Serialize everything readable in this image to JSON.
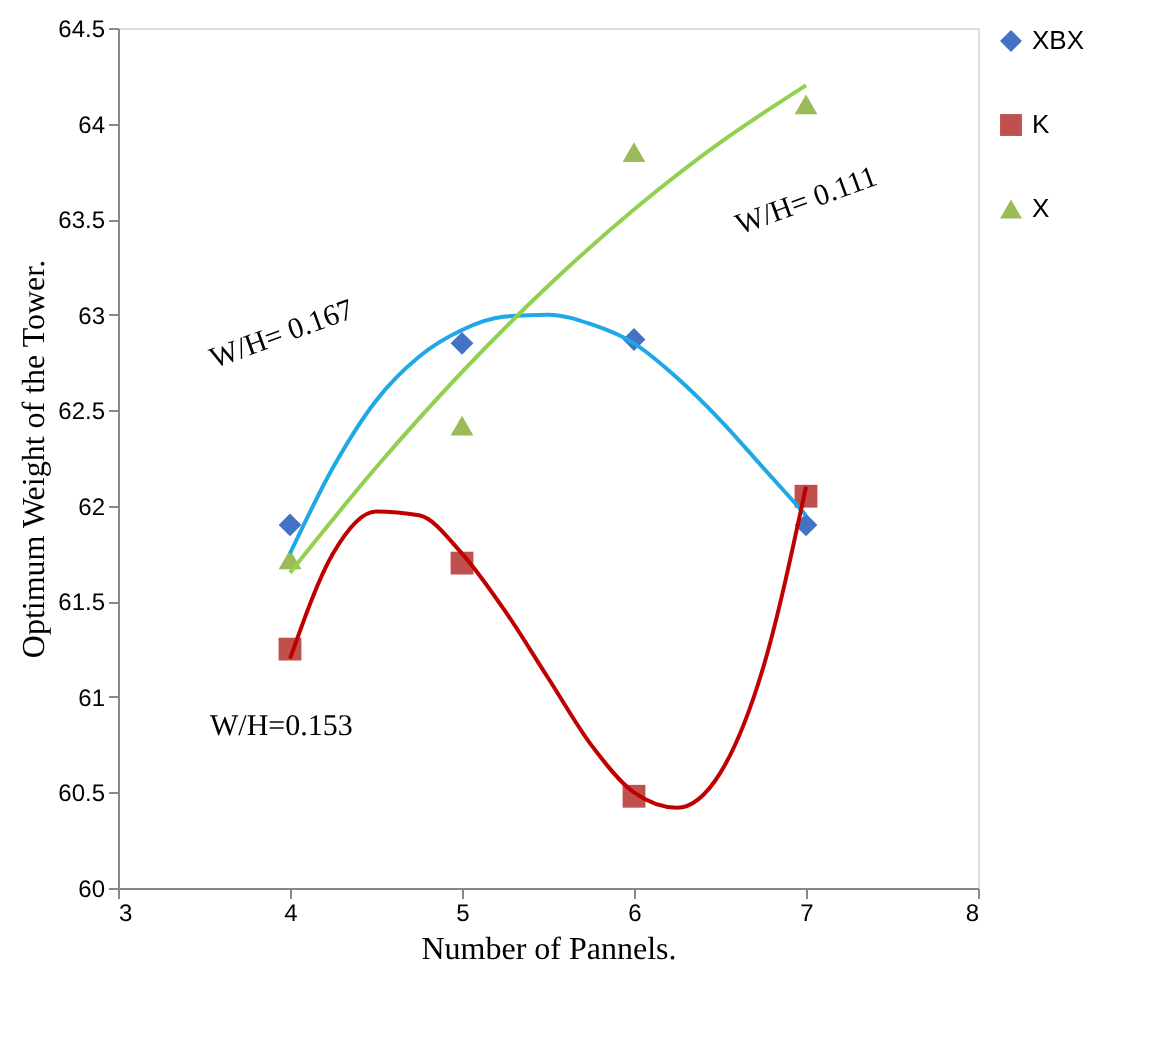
{
  "chart_data": {
    "type": "scatter",
    "xlabel": "Number of Pannels.",
    "ylabel": "Optimum Weight of the Tower.",
    "xlim": [
      3,
      8
    ],
    "xticks": [
      3,
      4,
      5,
      6,
      7,
      8
    ],
    "ylim": [
      60,
      64.5
    ],
    "yticks": [
      60,
      60.5,
      61,
      61.5,
      62,
      62.5,
      63,
      63.5,
      64,
      64.5
    ],
    "grid": false,
    "legend": "right",
    "x": [
      4,
      5,
      6,
      7
    ],
    "series": [
      {
        "name": "XBX",
        "color": "#4472c4",
        "marker": "diamond",
        "values": [
          61.9,
          62.85,
          62.87,
          61.9
        ]
      },
      {
        "name": "K",
        "color": "#c0504d",
        "marker": "square",
        "values": [
          61.25,
          61.7,
          60.48,
          62.05
        ]
      },
      {
        "name": "X",
        "color": "#9bbb59",
        "marker": "triangle",
        "values": [
          61.72,
          62.42,
          63.85,
          64.1
        ]
      },
      {
        "type": "line",
        "color": "#1ea8e6",
        "marker": "none",
        "line_style": "solid",
        "x": [
          4,
          4.25,
          4.5,
          4.75,
          5,
          5.25,
          5.5,
          5.75,
          6,
          6.25,
          6.5,
          6.75,
          7
        ],
        "values": [
          61.75,
          62.2,
          62.55,
          62.78,
          62.92,
          62.99,
          63.0,
          62.95,
          62.85,
          62.67,
          62.45,
          62.2,
          61.95
        ]
      },
      {
        "type": "line",
        "color": "#c00000",
        "marker": "none",
        "line_style": "solid",
        "x": [
          4,
          4.25,
          4.5,
          4.75,
          5,
          5.25,
          5.5,
          5.75,
          6,
          6.25,
          6.5,
          6.75,
          7
        ],
        "values": [
          61.2,
          61.75,
          61.97,
          61.95,
          61.75,
          61.45,
          61.1,
          60.75,
          60.5,
          60.42,
          60.6,
          61.15,
          62.1
        ]
      },
      {
        "type": "line",
        "color": "#92d050",
        "marker": "none",
        "line_style": "solid",
        "x": [
          4,
          4.5,
          5,
          5.5,
          6,
          6.5,
          7
        ],
        "values": [
          61.65,
          62.2,
          62.7,
          63.15,
          63.55,
          63.9,
          64.2
        ]
      }
    ],
    "annotations": [
      "W/H= 0.167",
      "W/H= 0.111",
      "W/H=0.153"
    ]
  }
}
